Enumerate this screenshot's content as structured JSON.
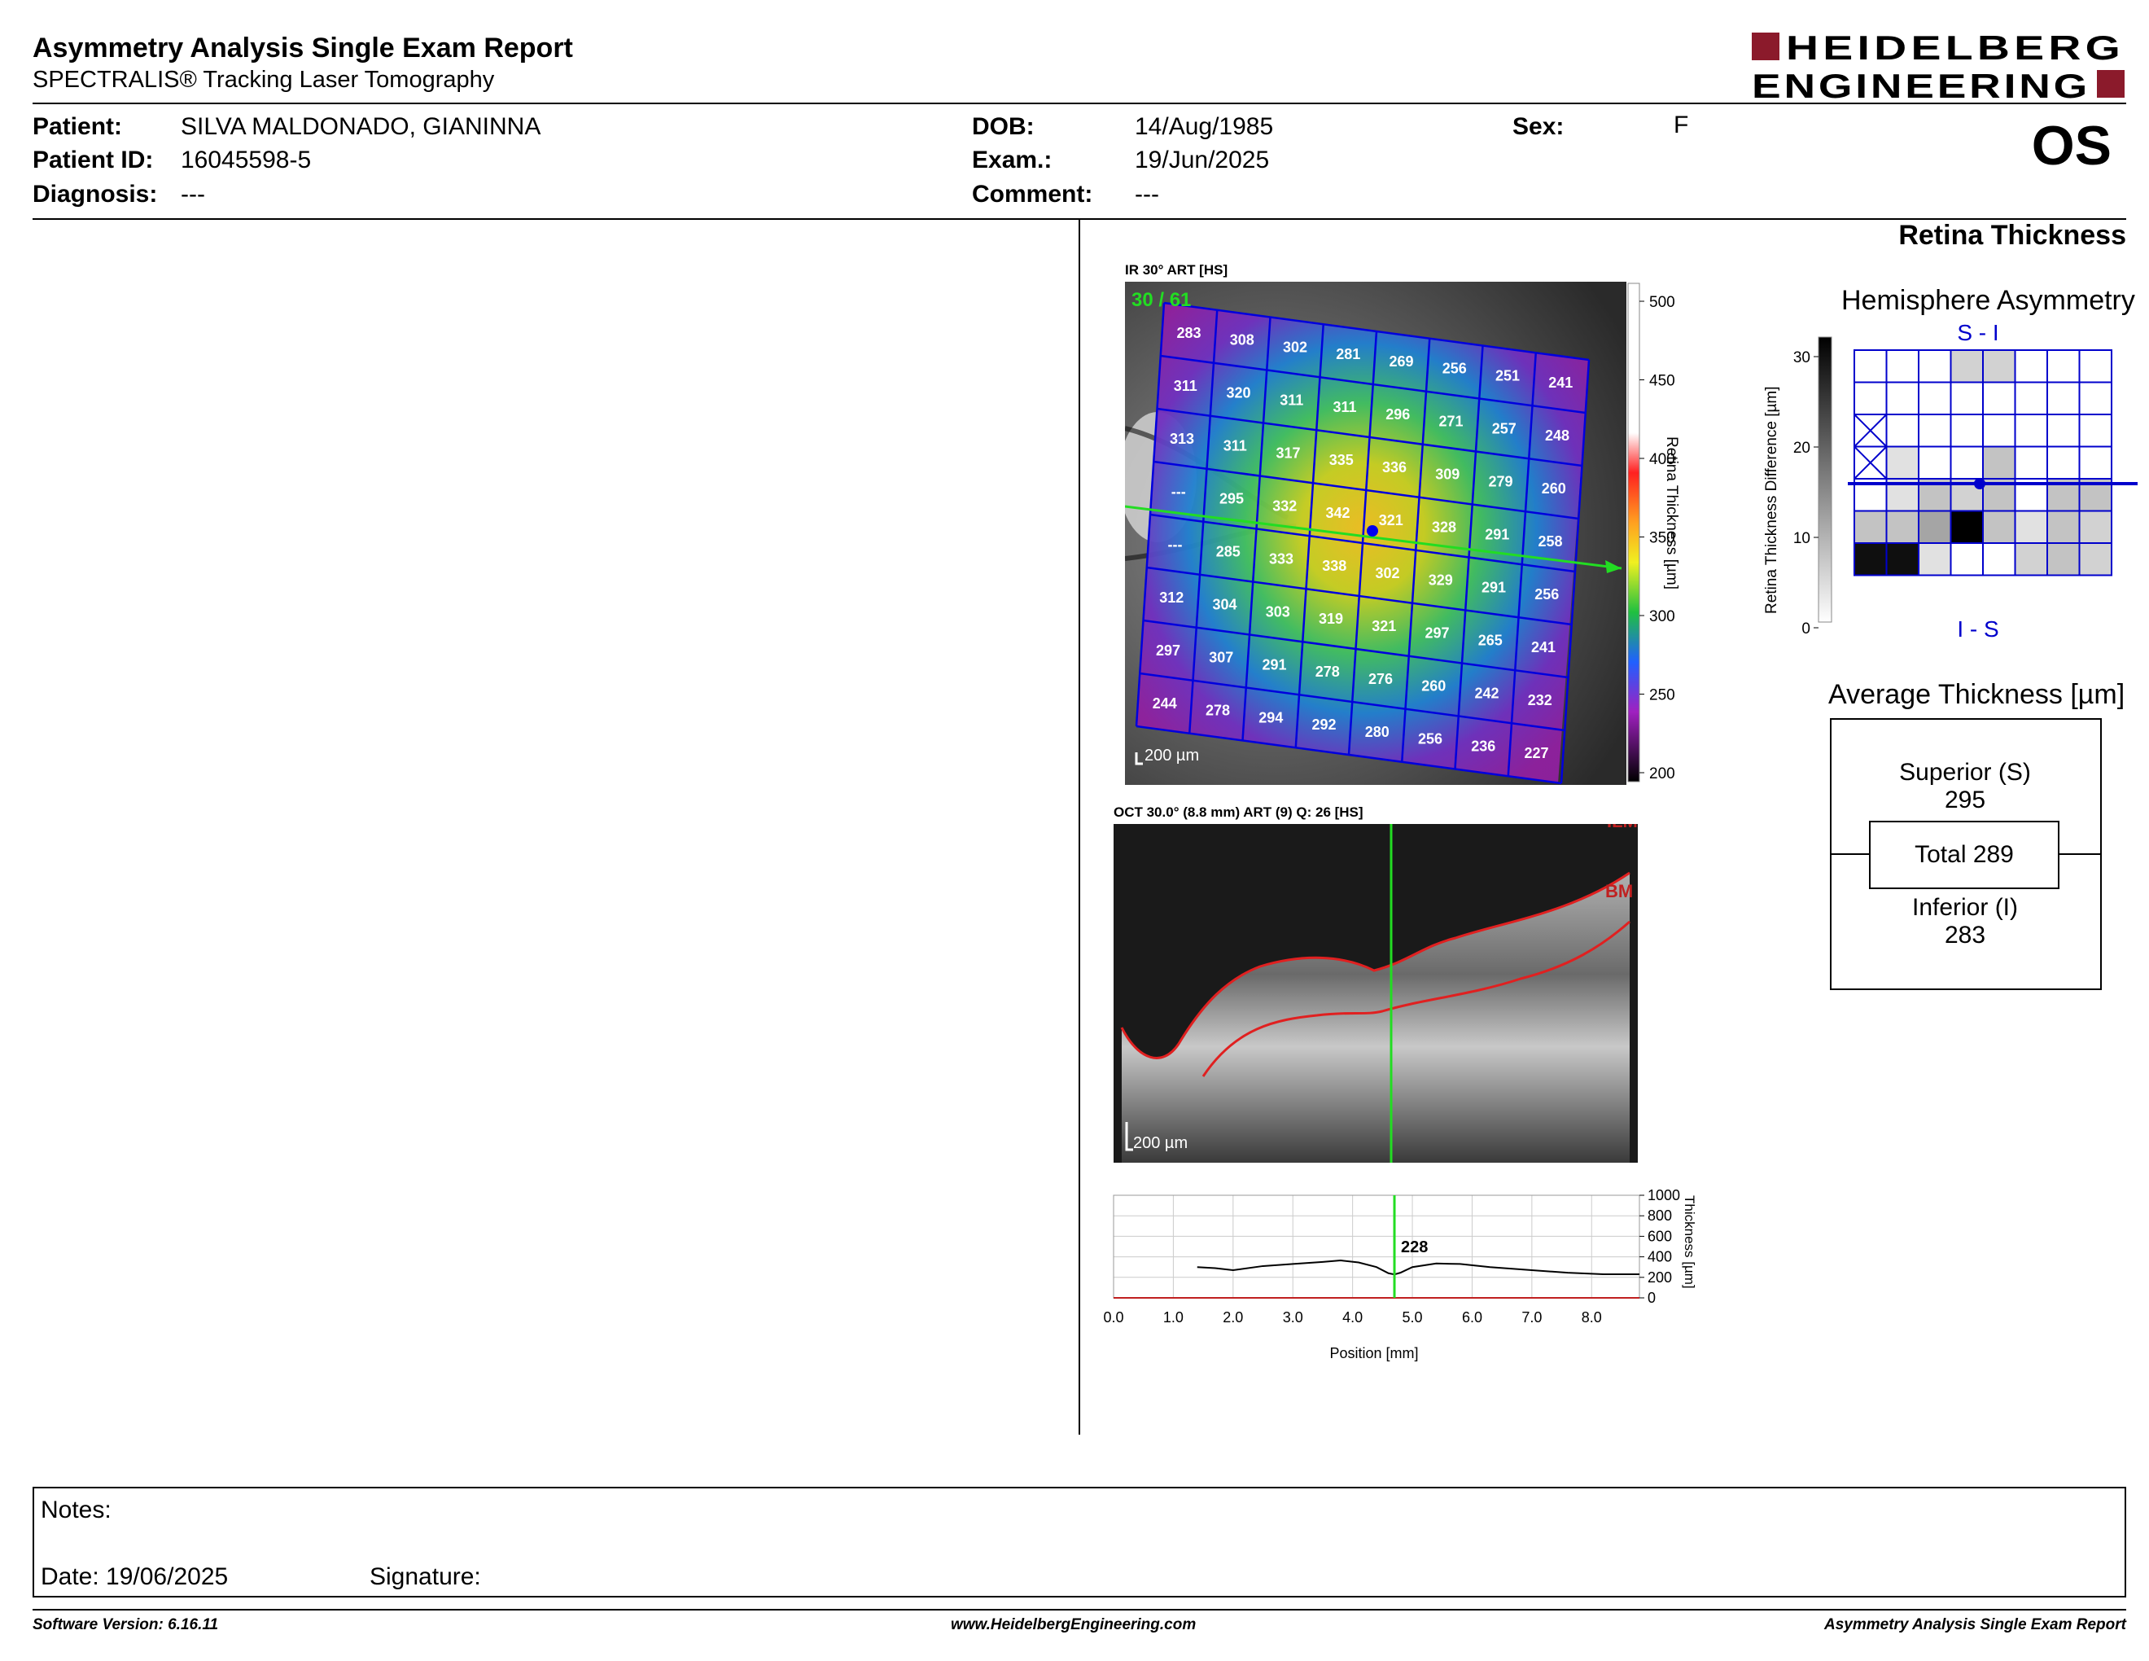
{
  "header": {
    "title": "Asymmetry Analysis Single Exam Report",
    "subtitle": "SPECTRALIS® Tracking Laser Tomography",
    "logo_line1": "HEIDELBERG",
    "logo_line2": "ENGINEERING",
    "eye": "OS",
    "brand_color": "#8b1a2b"
  },
  "patient": {
    "patient_label": "Patient:",
    "patient_value": "SILVA MALDONADO, GIANINNA",
    "id_label": "Patient ID:",
    "id_value": "16045598-5",
    "diagnosis_label": "Diagnosis:",
    "diagnosis_value": "---",
    "dob_label": "DOB:",
    "dob_value": "14/Aug/1985",
    "exam_label": "Exam.:",
    "exam_value": "19/Jun/2025",
    "comment_label": "Comment:",
    "comment_value": "---",
    "sex_label": "Sex:",
    "sex_value": "F"
  },
  "section_title": "Retina Thickness",
  "ir_image": {
    "label": "IR 30° ART [HS]",
    "counter": "30 / 61",
    "scale_label": "200 µm",
    "grid": [
      [
        283,
        308,
        302,
        281,
        269,
        256,
        251,
        241
      ],
      [
        311,
        320,
        311,
        311,
        296,
        271,
        257,
        248
      ],
      [
        313,
        311,
        317,
        335,
        336,
        309,
        279,
        260
      ],
      [
        "---",
        295,
        332,
        342,
        321,
        328,
        291,
        258
      ],
      [
        "---",
        285,
        333,
        338,
        302,
        329,
        291,
        256
      ],
      [
        312,
        304,
        303,
        319,
        321,
        297,
        265,
        241
      ],
      [
        297,
        307,
        291,
        278,
        276,
        260,
        242,
        232
      ],
      [
        244,
        278,
        294,
        292,
        280,
        256,
        236,
        227
      ]
    ],
    "colorbar_ticks": [
      "500",
      "450",
      "400",
      "350",
      "300",
      "250",
      "200"
    ],
    "colorbar_label": "Retina  Thickness [µm]"
  },
  "oct_image": {
    "label": "OCT 30.0° (8.8 mm) ART (9) Q: 26 [HS]",
    "scale_label": "200 µm",
    "ilm_label": "ILM",
    "bm_label": "BM"
  },
  "thickness_profile": {
    "marker_value": "228",
    "x_ticks": [
      "0.0",
      "1.0",
      "2.0",
      "3.0",
      "4.0",
      "5.0",
      "6.0",
      "7.0",
      "8.0"
    ],
    "y_ticks": [
      "1000",
      "800",
      "600",
      "400",
      "200",
      "0"
    ],
    "xlabel": "Position [mm]",
    "ylabel": "Thickness [µm]"
  },
  "chart_data": {
    "type": "line",
    "title": "",
    "xlabel": "Position [mm]",
    "ylabel": "Thickness [µm]",
    "xlim": [
      0,
      8.8
    ],
    "ylim": [
      0,
      1000
    ],
    "x": [
      1.4,
      1.7,
      2.0,
      2.5,
      3.0,
      3.5,
      3.8,
      4.1,
      4.4,
      4.6,
      4.7,
      4.8,
      5.0,
      5.4,
      5.8,
      6.3,
      7.0,
      7.6,
      8.2,
      8.8
    ],
    "series": [
      {
        "values": [
          300,
          290,
          270,
          310,
          330,
          350,
          365,
          345,
          300,
          240,
          228,
          245,
          300,
          335,
          330,
          300,
          270,
          245,
          230,
          230
        ]
      }
    ],
    "cursor_x": 4.7,
    "cursor_label": "228"
  },
  "hemisphere": {
    "title": "Hemisphere Asymmetry",
    "top_label": "S - I",
    "bottom_label": "I - S",
    "scale_ticks": [
      "30",
      "20",
      "10",
      "0"
    ],
    "ylabel": "Retina Thickness Difference [µm]",
    "cells": [
      [
        0,
        0,
        0,
        45,
        45,
        0,
        0,
        0
      ],
      [
        0,
        0,
        0,
        0,
        0,
        0,
        0,
        0
      ],
      [
        "x",
        0,
        0,
        0,
        0,
        0,
        0,
        0
      ],
      [
        "x",
        30,
        0,
        0,
        60,
        0,
        0,
        0
      ],
      [
        0,
        30,
        60,
        45,
        60,
        0,
        60,
        60
      ],
      [
        60,
        60,
        90,
        255,
        60,
        30,
        60,
        45
      ],
      [
        240,
        240,
        30,
        0,
        0,
        45,
        60,
        45
      ]
    ]
  },
  "average": {
    "title": "Average Thickness [µm]",
    "superior_label": "Superior (S)",
    "superior_value": "295",
    "total_label": "Total 289",
    "inferior_label": "Inferior (I)",
    "inferior_value": "283"
  },
  "notes": {
    "notes_label": "Notes:",
    "date_label": "Date: 19/06/2025",
    "signature_label": "Signature:"
  },
  "footer": {
    "software": "Software Version: 6.16.11",
    "website": "www.HeidelbergEngineering.com",
    "report_name": "Asymmetry Analysis Single Exam Report"
  }
}
